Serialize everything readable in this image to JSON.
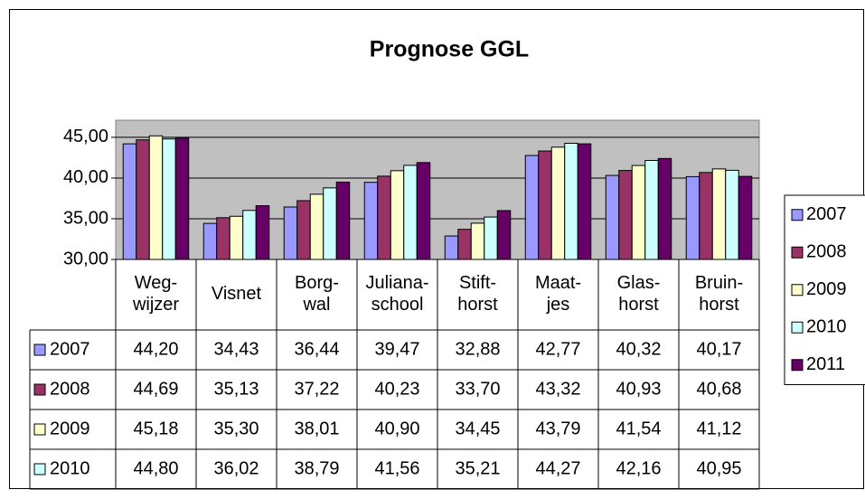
{
  "chart_data": {
    "type": "bar",
    "title": "Prognose GGL",
    "categories": [
      "Weg-wijzer",
      "Visnet",
      "Borg-wal",
      "Juliana-school",
      "Stift-horst",
      "Maat-jes",
      "Glas-horst",
      "Bruin-horst"
    ],
    "series": [
      {
        "name": "2007",
        "color": "#9999ff",
        "values": [
          44.2,
          34.43,
          36.44,
          39.47,
          32.88,
          42.77,
          40.32,
          40.17
        ],
        "value_labels": [
          "44,20",
          "34,43",
          "36,44",
          "39,47",
          "32,88",
          "42,77",
          "40,32",
          "40,17"
        ]
      },
      {
        "name": "2008",
        "color": "#993366",
        "values": [
          44.69,
          35.13,
          37.22,
          40.23,
          33.7,
          43.32,
          40.93,
          40.68
        ],
        "value_labels": [
          "44,69",
          "35,13",
          "37,22",
          "40,23",
          "33,70",
          "43,32",
          "40,93",
          "40,68"
        ]
      },
      {
        "name": "2009",
        "color": "#ffffcc",
        "values": [
          45.18,
          35.3,
          38.01,
          40.9,
          34.45,
          43.79,
          41.54,
          41.12
        ],
        "value_labels": [
          "45,18",
          "35,30",
          "38,01",
          "40,90",
          "34,45",
          "43,79",
          "41,54",
          "41,12"
        ]
      },
      {
        "name": "2010",
        "color": "#ccffff",
        "values": [
          44.8,
          36.02,
          38.79,
          41.56,
          35.21,
          44.27,
          42.16,
          40.95
        ],
        "value_labels": [
          "44,80",
          "36,02",
          "38,79",
          "41,56",
          "35,21",
          "44,27",
          "42,16",
          "40,95"
        ]
      },
      {
        "name": "2011",
        "color": "#660066",
        "values": [
          44.9,
          36.6,
          39.5,
          41.9,
          36.0,
          44.2,
          42.4,
          40.2
        ]
      }
    ],
    "ylim": [
      30,
      47.1
    ],
    "yticks": [
      {
        "value": 30,
        "label": "30,00"
      },
      {
        "value": 35,
        "label": "35,00"
      },
      {
        "value": 40,
        "label": "40,00"
      },
      {
        "value": 45,
        "label": "45,00"
      }
    ],
    "grid": true,
    "plot_background": "#c0c0c0",
    "legend": "right"
  }
}
